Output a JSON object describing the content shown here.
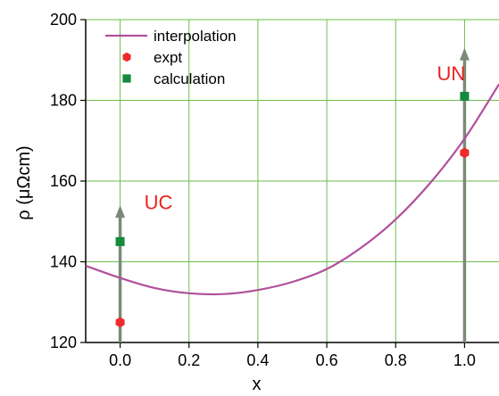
{
  "chart_data": {
    "type": "scatter",
    "xlabel": "x",
    "ylabel": "ρ (μΩcm)",
    "xlim": [
      -0.1,
      1.1
    ],
    "ylim": [
      120,
      200
    ],
    "xticks": [
      0.0,
      0.2,
      0.4,
      0.6,
      0.8,
      1.0
    ],
    "xtick_labels": [
      "0.0",
      "0.2",
      "0.4",
      "0.6",
      "0.8",
      "1.0"
    ],
    "yticks": [
      120,
      140,
      160,
      180,
      200
    ],
    "ytick_labels": [
      "120",
      "140",
      "160",
      "180",
      "200"
    ],
    "grid": true,
    "legend_position": "top-left",
    "series": [
      {
        "name": "interpolation",
        "kind": "line",
        "color": "#b0509e",
        "x": [
          -0.1,
          0.0,
          0.1,
          0.2,
          0.3,
          0.4,
          0.5,
          0.6,
          0.7,
          0.8,
          0.9,
          1.0,
          1.1
        ],
        "y": [
          139.0,
          136.0,
          133.5,
          132.2,
          132.0,
          133.0,
          135.0,
          138.2,
          143.5,
          150.5,
          159.5,
          170.5,
          184.0
        ]
      },
      {
        "name": "expt",
        "kind": "marker",
        "marker": "hexagon",
        "color": "#ee2a2a",
        "x": [
          0.0,
          1.0
        ],
        "y": [
          125,
          167
        ]
      },
      {
        "name": "calculation",
        "kind": "marker",
        "marker": "square",
        "color": "#138a3e",
        "x": [
          0.0,
          1.0
        ],
        "y": [
          145,
          181
        ]
      }
    ],
    "arrows": [
      {
        "x": 0.0,
        "y_from": 120,
        "y_to": 154,
        "color": "#7a8a76"
      },
      {
        "x": 1.0,
        "y_from": 120,
        "y_to": 193,
        "color": "#7a8a76"
      }
    ],
    "annotations": [
      {
        "text": "UC",
        "x": 0.07,
        "y": 153,
        "color": "#e8231f"
      },
      {
        "text": "UN",
        "x": 0.92,
        "y": 185,
        "color": "#e8231f"
      }
    ],
    "colors": {
      "grid": "#6abf4b",
      "axis": "#000000"
    }
  }
}
